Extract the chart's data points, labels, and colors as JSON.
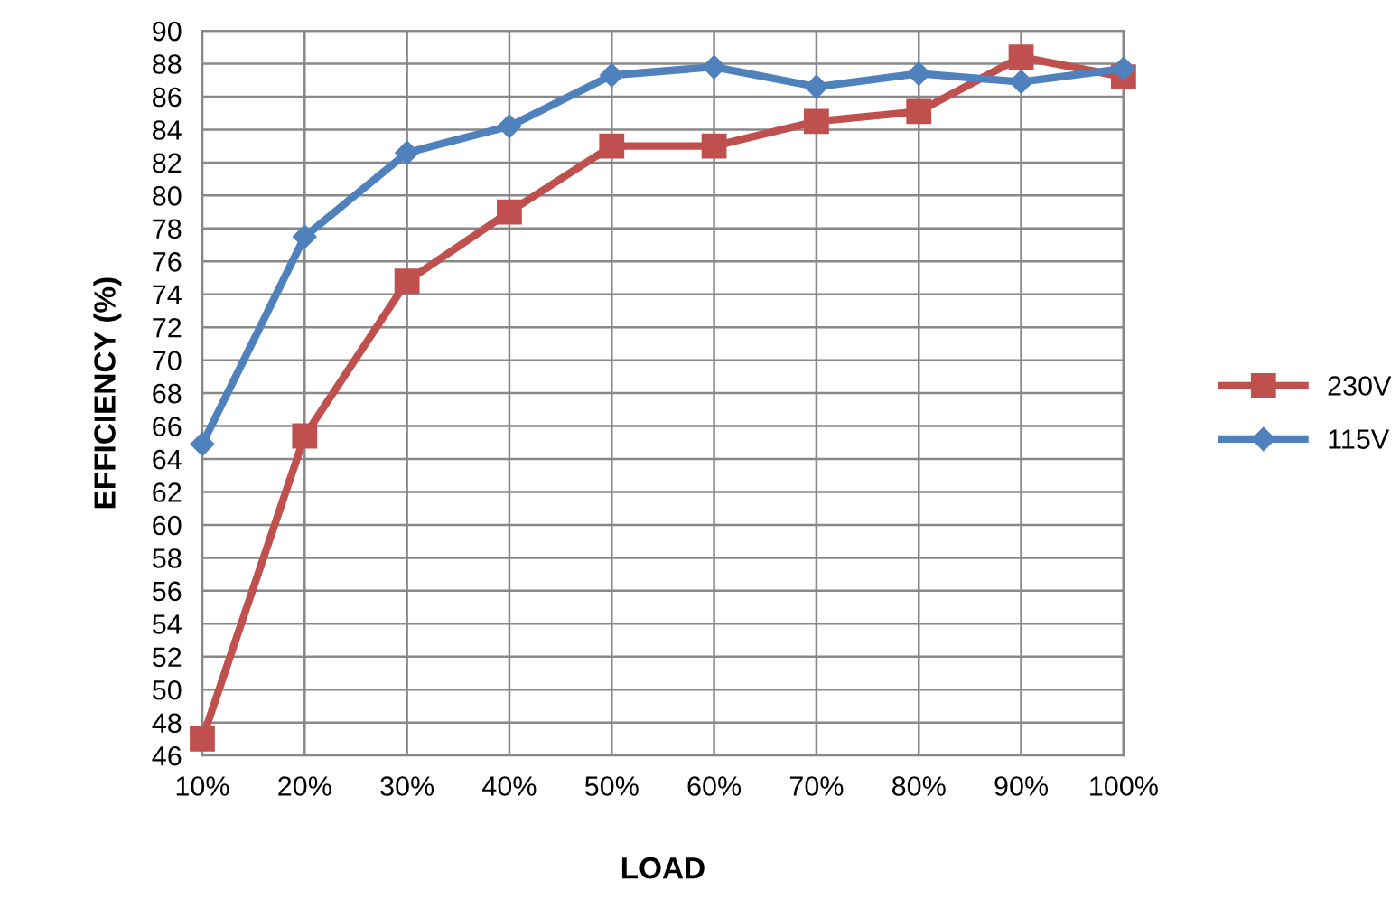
{
  "chart_data": {
    "type": "line",
    "xlabel": "LOAD",
    "ylabel": "EFFICIENCY (%)",
    "categories": [
      "10%",
      "20%",
      "30%",
      "40%",
      "50%",
      "60%",
      "70%",
      "80%",
      "90%",
      "100%"
    ],
    "series": [
      {
        "name": "230V",
        "color": "#c0504d",
        "marker": "square",
        "values": [
          47.0,
          65.4,
          74.8,
          79.0,
          83.0,
          83.0,
          84.5,
          85.1,
          88.4,
          87.2
        ]
      },
      {
        "name": "115V",
        "color": "#4f81bd",
        "marker": "diamond",
        "values": [
          64.9,
          77.5,
          82.6,
          84.2,
          87.3,
          87.8,
          86.6,
          87.4,
          86.9,
          87.7
        ]
      }
    ],
    "ylim": [
      46,
      90
    ],
    "yticks": [
      46,
      48,
      50,
      52,
      54,
      56,
      58,
      60,
      62,
      64,
      66,
      68,
      70,
      72,
      74,
      76,
      78,
      80,
      82,
      84,
      86,
      88,
      90
    ],
    "grid": true,
    "legend": "right",
    "line_style": "solid"
  }
}
